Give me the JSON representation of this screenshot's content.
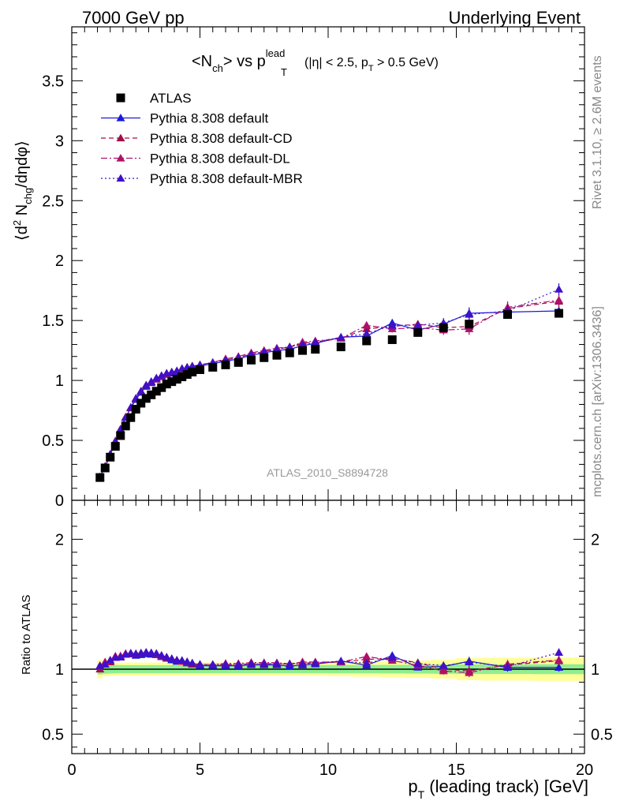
{
  "header": {
    "left": "7000 GeV pp",
    "right": "Underlying Event"
  },
  "side_labels": {
    "rivet": "Rivet 3.1.10, ≥ 2.6M events",
    "mcplots": "mcplots.cern.ch [arXiv:1306.3436]"
  },
  "main_title": {
    "prefix": "<N",
    "prefix_sub": "ch",
    "middle": "> vs p",
    "p_sup": "lead",
    "p_sub": "T",
    "cuts_a": "(|η| < 2.5, p",
    "cuts_sub": "T",
    "cuts_b": " > 0.5 GeV)"
  },
  "ylabel_top": {
    "a": "⟨d",
    "sup": "2",
    "b": " N",
    "sub": "chg",
    "c": "/dηdφ⟩"
  },
  "ylabel_bottom": "Ratio to ATLAS",
  "xlabel": {
    "a": "p",
    "sub": "T",
    "b": " (leading track) [GeV]"
  },
  "watermark": "ATLAS_2010_S8894728",
  "legend": [
    {
      "label": "ATLAS",
      "color": "#000000",
      "style": "marker-square"
    },
    {
      "label": "Pythia 8.308 default",
      "color": "#1a1adc",
      "style": "solid"
    },
    {
      "label": "Pythia 8.308 default-CD",
      "color": "#a0104a",
      "style": "dashed"
    },
    {
      "label": "Pythia 8.308 default-DL",
      "color": "#b0106a",
      "style": "dashdot"
    },
    {
      "label": "Pythia 8.308 default-MBR",
      "color": "#4010c8",
      "style": "dotted"
    }
  ],
  "chart_data": {
    "type": "scatter",
    "xlim": [
      0,
      20
    ],
    "ylim_top": [
      0,
      3.95
    ],
    "ylim_bottom": [
      0.35,
      2.3
    ],
    "x_ticks": [
      "0",
      "5",
      "10",
      "15",
      "20"
    ],
    "y_ticks_top": [
      "0",
      "0.5",
      "1",
      "1.5",
      "2",
      "2.5",
      "3",
      "3.5"
    ],
    "y_ticks_bottom": [
      "0.5",
      "1",
      "2"
    ],
    "atlas": {
      "x": [
        1.1,
        1.3,
        1.5,
        1.7,
        1.9,
        2.1,
        2.3,
        2.5,
        2.7,
        2.9,
        3.1,
        3.3,
        3.5,
        3.7,
        3.9,
        4.1,
        4.3,
        4.5,
        4.7,
        5.0,
        5.5,
        6.0,
        6.5,
        7.0,
        7.5,
        8.0,
        8.5,
        9.0,
        9.5,
        10.5,
        11.5,
        12.5,
        13.5,
        14.5,
        15.5,
        17.0,
        19.0
      ],
      "y": [
        0.19,
        0.27,
        0.36,
        0.45,
        0.54,
        0.62,
        0.69,
        0.76,
        0.81,
        0.85,
        0.88,
        0.91,
        0.94,
        0.97,
        0.99,
        1.01,
        1.03,
        1.05,
        1.07,
        1.09,
        1.11,
        1.13,
        1.15,
        1.17,
        1.19,
        1.21,
        1.23,
        1.25,
        1.26,
        1.28,
        1.33,
        1.34,
        1.4,
        1.44,
        1.47,
        1.55,
        1.56
      ],
      "err": [
        0.01,
        0.01,
        0.01,
        0.01,
        0.01,
        0.01,
        0.01,
        0.01,
        0.01,
        0.01,
        0.01,
        0.01,
        0.01,
        0.01,
        0.01,
        0.01,
        0.01,
        0.01,
        0.01,
        0.01,
        0.01,
        0.01,
        0.01,
        0.01,
        0.01,
        0.01,
        0.01,
        0.01,
        0.01,
        0.01,
        0.01,
        0.01,
        0.02,
        0.02,
        0.02,
        0.02,
        0.02
      ]
    },
    "series": [
      {
        "name": "Pythia 8.308 default",
        "color": "#1a1adc",
        "style": "solid",
        "y": [
          0.195,
          0.28,
          0.38,
          0.49,
          0.59,
          0.69,
          0.77,
          0.84,
          0.9,
          0.95,
          0.98,
          1.01,
          1.03,
          1.05,
          1.06,
          1.07,
          1.09,
          1.1,
          1.11,
          1.12,
          1.14,
          1.16,
          1.18,
          1.21,
          1.23,
          1.25,
          1.26,
          1.29,
          1.31,
          1.36,
          1.37,
          1.48,
          1.42,
          1.47,
          1.56,
          1.57,
          1.58
        ],
        "err": [
          0.005,
          0.005,
          0.005,
          0.005,
          0.005,
          0.005,
          0.005,
          0.005,
          0.005,
          0.005,
          0.005,
          0.005,
          0.005,
          0.005,
          0.005,
          0.005,
          0.005,
          0.005,
          0.005,
          0.005,
          0.01,
          0.01,
          0.01,
          0.01,
          0.01,
          0.01,
          0.01,
          0.01,
          0.01,
          0.01,
          0.02,
          0.03,
          0.03,
          0.04,
          0.05,
          0.05,
          0.05
        ]
      },
      {
        "name": "Pythia 8.308 default-CD",
        "color": "#a0104a",
        "style": "dashed",
        "y": [
          0.19,
          0.28,
          0.38,
          0.49,
          0.59,
          0.69,
          0.77,
          0.85,
          0.91,
          0.96,
          0.99,
          1.01,
          1.03,
          1.05,
          1.07,
          1.08,
          1.09,
          1.1,
          1.11,
          1.13,
          1.15,
          1.17,
          1.19,
          1.22,
          1.24,
          1.26,
          1.28,
          1.31,
          1.32,
          1.35,
          1.43,
          1.45,
          1.47,
          1.44,
          1.45,
          1.6,
          1.66
        ],
        "err": [
          0.005,
          0.005,
          0.005,
          0.005,
          0.005,
          0.005,
          0.005,
          0.005,
          0.005,
          0.005,
          0.005,
          0.005,
          0.005,
          0.005,
          0.005,
          0.005,
          0.005,
          0.005,
          0.005,
          0.005,
          0.01,
          0.01,
          0.01,
          0.01,
          0.01,
          0.01,
          0.01,
          0.01,
          0.01,
          0.01,
          0.02,
          0.03,
          0.03,
          0.04,
          0.05,
          0.05,
          0.05
        ]
      },
      {
        "name": "Pythia 8.308 default-DL",
        "color": "#b0106a",
        "style": "dashdot",
        "y": [
          0.195,
          0.285,
          0.385,
          0.495,
          0.595,
          0.695,
          0.775,
          0.85,
          0.91,
          0.96,
          0.99,
          1.02,
          1.04,
          1.06,
          1.07,
          1.08,
          1.09,
          1.11,
          1.12,
          1.13,
          1.15,
          1.18,
          1.2,
          1.23,
          1.25,
          1.27,
          1.28,
          1.32,
          1.33,
          1.35,
          1.46,
          1.43,
          1.44,
          1.42,
          1.43,
          1.61,
          1.67
        ],
        "err": [
          0.005,
          0.005,
          0.005,
          0.005,
          0.005,
          0.005,
          0.005,
          0.005,
          0.005,
          0.005,
          0.005,
          0.005,
          0.005,
          0.005,
          0.005,
          0.005,
          0.005,
          0.005,
          0.005,
          0.005,
          0.01,
          0.01,
          0.01,
          0.01,
          0.01,
          0.01,
          0.01,
          0.01,
          0.01,
          0.01,
          0.02,
          0.03,
          0.03,
          0.04,
          0.05,
          0.05,
          0.05
        ]
      },
      {
        "name": "Pythia 8.308 default-MBR",
        "color": "#4010c8",
        "style": "dotted",
        "y": [
          0.195,
          0.28,
          0.385,
          0.49,
          0.59,
          0.69,
          0.775,
          0.85,
          0.91,
          0.96,
          0.99,
          1.02,
          1.04,
          1.06,
          1.07,
          1.08,
          1.1,
          1.11,
          1.12,
          1.13,
          1.15,
          1.17,
          1.19,
          1.22,
          1.24,
          1.26,
          1.28,
          1.3,
          1.32,
          1.36,
          1.39,
          1.46,
          1.46,
          1.48,
          1.55,
          1.58,
          1.76
        ],
        "err": [
          0.005,
          0.005,
          0.005,
          0.005,
          0.005,
          0.005,
          0.005,
          0.005,
          0.005,
          0.005,
          0.005,
          0.005,
          0.005,
          0.005,
          0.005,
          0.005,
          0.005,
          0.005,
          0.005,
          0.005,
          0.01,
          0.01,
          0.01,
          0.01,
          0.01,
          0.01,
          0.01,
          0.01,
          0.01,
          0.01,
          0.02,
          0.03,
          0.03,
          0.04,
          0.05,
          0.05,
          0.05
        ]
      }
    ],
    "ratio_band": {
      "x_edges": [
        1.0,
        1.2,
        1.4,
        1.6,
        1.8,
        2.0,
        2.2,
        2.4,
        2.6,
        2.8,
        3.0,
        3.2,
        3.4,
        3.6,
        3.8,
        4.0,
        4.2,
        4.4,
        4.6,
        4.8,
        5.25,
        5.75,
        6.25,
        6.75,
        7.25,
        7.75,
        8.25,
        8.75,
        9.25,
        10.0,
        11.0,
        12.0,
        13.0,
        14.0,
        15.0,
        16.0,
        18.0,
        20.0
      ],
      "green": [
        0.04,
        0.035,
        0.033,
        0.032,
        0.031,
        0.031,
        0.031,
        0.031,
        0.031,
        0.031,
        0.031,
        0.031,
        0.031,
        0.031,
        0.031,
        0.031,
        0.031,
        0.031,
        0.031,
        0.031,
        0.031,
        0.031,
        0.031,
        0.031,
        0.031,
        0.031,
        0.031,
        0.031,
        0.031,
        0.032,
        0.032,
        0.033,
        0.034,
        0.035,
        0.037,
        0.037,
        0.038
      ],
      "yellow": [
        0.07,
        0.055,
        0.052,
        0.051,
        0.051,
        0.051,
        0.051,
        0.051,
        0.051,
        0.051,
        0.051,
        0.051,
        0.051,
        0.051,
        0.051,
        0.051,
        0.051,
        0.051,
        0.051,
        0.051,
        0.051,
        0.051,
        0.051,
        0.051,
        0.051,
        0.051,
        0.051,
        0.051,
        0.052,
        0.055,
        0.058,
        0.062,
        0.066,
        0.072,
        0.085,
        0.088,
        0.09
      ]
    }
  }
}
